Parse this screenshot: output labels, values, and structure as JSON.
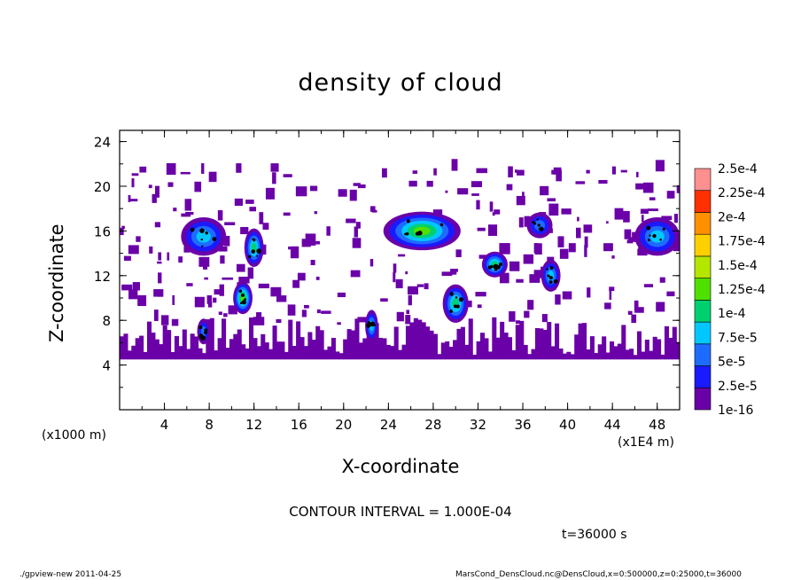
{
  "chart_data": {
    "type": "heatmap",
    "title": "density of cloud",
    "xlabel": "X-coordinate",
    "ylabel": "Z-coordinate",
    "x_unit_left": "(x1000 m)",
    "x_unit_right": "(x1E4 m)",
    "xlim": [
      0,
      50
    ],
    "ylim": [
      0,
      25
    ],
    "x_ticks": [
      "4",
      "8",
      "12",
      "16",
      "20",
      "24",
      "28",
      "32",
      "36",
      "40",
      "44",
      "48"
    ],
    "y_ticks": [
      "4",
      "8",
      "12",
      "16",
      "20",
      "24"
    ],
    "colorbar_labels": [
      "1e-16",
      "2.5e-5",
      "5e-5",
      "7.5e-5",
      "1e-4",
      "1.25e-4",
      "1.5e-4",
      "1.75e-4",
      "2e-4",
      "2.25e-4",
      "2.5e-4"
    ],
    "colorbar_colors": [
      "#6a00a8",
      "#1a1aff",
      "#1e6cff",
      "#00c8ff",
      "#00d070",
      "#50e000",
      "#b4e600",
      "#ffd000",
      "#ff9000",
      "#ff3000",
      "#ff9090"
    ],
    "cloud_base_z": 4.5,
    "cells": [
      {
        "x": 7.5,
        "z": 15.5,
        "w": 3.5,
        "h": 3,
        "level": 3
      },
      {
        "x": 12,
        "z": 14.5,
        "w": 1.5,
        "h": 3,
        "level": 4
      },
      {
        "x": 11,
        "z": 10,
        "w": 1.5,
        "h": 2.5,
        "level": 5
      },
      {
        "x": 27,
        "z": 16,
        "w": 6,
        "h": 3,
        "level": 5
      },
      {
        "x": 30,
        "z": 9.5,
        "w": 2,
        "h": 3,
        "level": 4
      },
      {
        "x": 33.5,
        "z": 13,
        "w": 2,
        "h": 2,
        "level": 4
      },
      {
        "x": 38.5,
        "z": 12,
        "w": 1.5,
        "h": 2.5,
        "level": 3
      },
      {
        "x": 48,
        "z": 15.5,
        "w": 3.5,
        "h": 3,
        "level": 3
      },
      {
        "x": 22.5,
        "z": 7.5,
        "w": 1,
        "h": 2.5,
        "level": 3
      },
      {
        "x": 7.5,
        "z": 7,
        "w": 1,
        "h": 2,
        "level": 2
      },
      {
        "x": 37.5,
        "z": 16.5,
        "w": 2,
        "h": 2,
        "level": 2
      }
    ]
  },
  "contour_interval": "CONTOUR INTERVAL = 1.000E-04",
  "time_label": "t=36000  s",
  "footer_left": "./gpview-new   2011-04-25",
  "footer_right": "MarsCond_DensCloud.nc@DensCloud,x=0:500000,z=0:25000,t=36000"
}
